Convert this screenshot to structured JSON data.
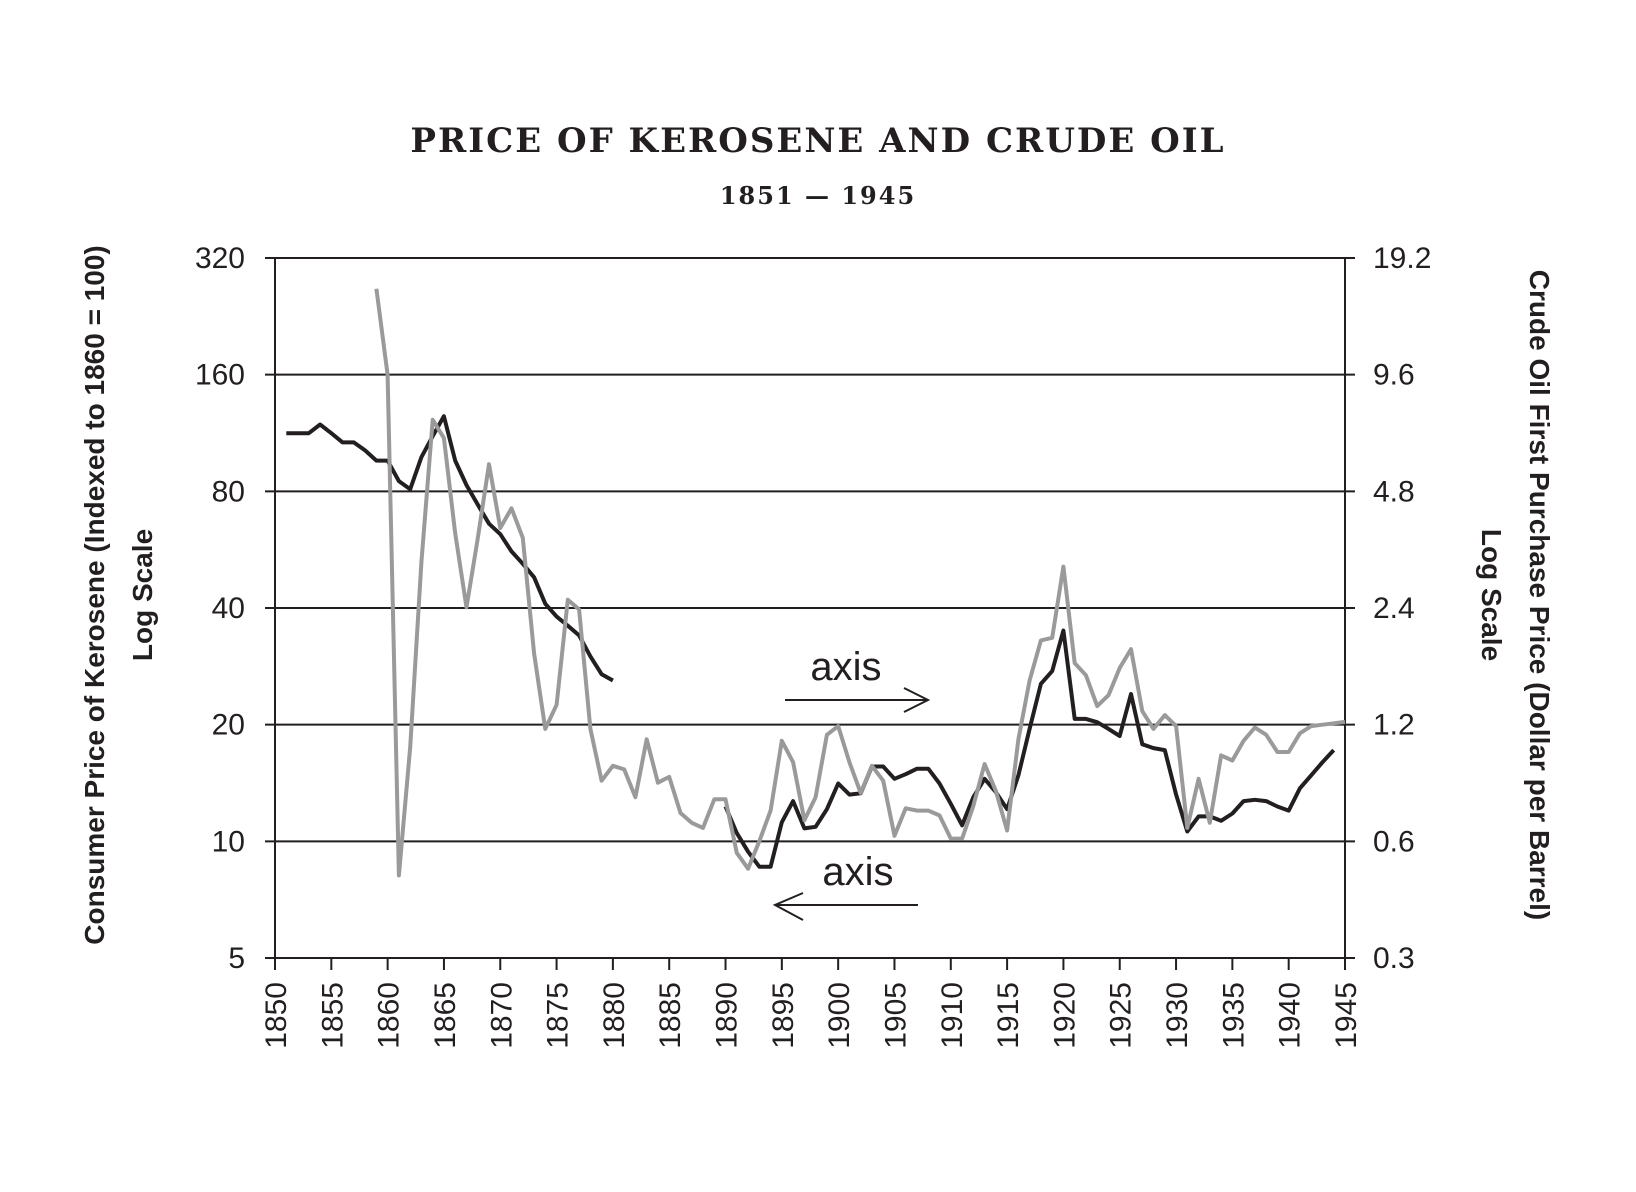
{
  "chart_data": {
    "type": "line",
    "title": "PRICE OF KEROSENE AND CRUDE OIL",
    "subtitle": "1851 — 1945",
    "xlim": [
      1850,
      1945
    ],
    "x_ticks": [
      "1850",
      "1855",
      "1860",
      "1865",
      "1870",
      "1875",
      "1880",
      "1885",
      "1890",
      "1895",
      "1900",
      "1905",
      "1910",
      "1915",
      "1920",
      "1925",
      "1930",
      "1935",
      "1940",
      "1945"
    ],
    "left_axis": {
      "label": "Consumer Price of Kerosene (Indexed to 1860 = 100)",
      "sublabel": "Log Scale",
      "scale": "log",
      "ylim": [
        5,
        320
      ],
      "ticks": [
        "320",
        "160",
        "80",
        "40",
        "20",
        "10",
        "5"
      ]
    },
    "right_axis": {
      "label": "Crude Oil First Purchase Price (Dollar per Barrel)",
      "sublabel": "Log Scale",
      "scale": "log",
      "ylim": [
        0.3,
        19.2
      ],
      "ticks": [
        "19.2",
        "9.6",
        "4.8",
        "2.4",
        "1.2",
        "0.6",
        "0.3"
      ]
    },
    "annotations": [
      {
        "text": "axis",
        "arrow": "right",
        "points_to": "crude oil (right axis)"
      },
      {
        "text": "axis",
        "arrow": "left",
        "points_to": "kerosene (left axis)"
      }
    ],
    "series": [
      {
        "name": "Kerosene",
        "axis": "left",
        "color": "#231f20",
        "segments": [
          {
            "x": [
              1851,
              1852,
              1853,
              1854,
              1855,
              1856,
              1857,
              1858,
              1859,
              1860,
              1861,
              1862,
              1863,
              1864,
              1865,
              1866,
              1867,
              1868,
              1869,
              1870,
              1871,
              1872,
              1873,
              1874,
              1875,
              1876,
              1877,
              1878,
              1879,
              1880
            ],
            "y": [
              113,
              113,
              113,
              119,
              113,
              107,
              107,
              102,
              96,
              96,
              85,
              81,
              98,
              111,
              125,
              96,
              83,
              74,
              66,
              62,
              56,
              52,
              48,
              41,
              38,
              36,
              34,
              30,
              27,
              26
            ]
          },
          {
            "x": [
              1890,
              1891,
              1892,
              1893,
              1894,
              1895,
              1896,
              1897,
              1898,
              1899,
              1900,
              1901,
              1902,
              1903,
              1904,
              1905,
              1906,
              1907,
              1908,
              1909,
              1910,
              1911,
              1912,
              1913,
              1914,
              1915,
              1916,
              1917,
              1918,
              1919,
              1920,
              1921,
              1922,
              1923,
              1924,
              1925,
              1926,
              1927,
              1928,
              1929,
              1930,
              1931,
              1932,
              1933,
              1934,
              1935,
              1936,
              1937,
              1938,
              1939,
              1940,
              1941,
              1942,
              1943,
              1944
            ],
            "y": [
              12.3,
              10.5,
              9.4,
              8.6,
              8.6,
              11.2,
              12.7,
              10.8,
              10.9,
              12.1,
              14.1,
              13.2,
              13.3,
              15.6,
              15.6,
              14.5,
              14.9,
              15.4,
              15.4,
              14.1,
              12.5,
              11.0,
              13.0,
              14.5,
              13.4,
              12.1,
              14.8,
              19.5,
              25.5,
              27.5,
              35.0,
              20.7,
              20.7,
              20.3,
              19.5,
              18.7,
              24.0,
              17.8,
              17.4,
              17.2,
              13.2,
              10.6,
              11.6,
              11.6,
              11.3,
              11.8,
              12.7,
              12.8,
              12.7,
              12.3,
              12.0,
              13.7,
              14.8,
              16.0,
              17.2
            ]
          }
        ]
      },
      {
        "name": "Crude Oil",
        "axis": "right",
        "color": "#9a9a9a",
        "segments": [
          {
            "x": [
              1859,
              1860,
              1861,
              1862,
              1863,
              1864,
              1865,
              1866,
              1867,
              1868,
              1869,
              1870,
              1871,
              1872,
              1873,
              1874,
              1875,
              1876,
              1877,
              1878,
              1879,
              1880,
              1881,
              1882,
              1883,
              1884,
              1885,
              1886,
              1887,
              1888,
              1889,
              1890,
              1891,
              1892,
              1893,
              1894,
              1895,
              1896,
              1897,
              1898,
              1899,
              1900,
              1901,
              1902,
              1903,
              1904,
              1905,
              1906,
              1907,
              1908,
              1909,
              1910,
              1911,
              1912,
              1913,
              1914,
              1915,
              1916,
              1917,
              1918,
              1919,
              1920,
              1921,
              1922,
              1923,
              1924,
              1925,
              1926,
              1927,
              1928,
              1929,
              1930,
              1931,
              1932,
              1933,
              1934,
              1935,
              1936,
              1937,
              1938,
              1939,
              1940,
              1941,
              1942,
              1943,
              1944,
              1945
            ],
            "y": [
              16,
              9.6,
              0.49,
              1.05,
              3.15,
              7.34,
              6.59,
              3.74,
              2.41,
              3.62,
              5.64,
              3.86,
              4.34,
              3.64,
              1.83,
              1.17,
              1.35,
              2.52,
              2.38,
              1.17,
              0.86,
              0.94,
              0.92,
              0.78,
              1.1,
              0.85,
              0.88,
              0.71,
              0.67,
              0.65,
              0.77,
              0.77,
              0.56,
              0.51,
              0.6,
              0.72,
              1.09,
              0.96,
              0.68,
              0.78,
              1.13,
              1.19,
              0.96,
              0.8,
              0.94,
              0.86,
              0.62,
              0.73,
              0.72,
              0.72,
              0.7,
              0.61,
              0.61,
              0.74,
              0.95,
              0.81,
              0.64,
              1.1,
              1.56,
              1.98,
              2.01,
              3.07,
              1.73,
              1.61,
              1.34,
              1.43,
              1.68,
              1.88,
              1.3,
              1.17,
              1.27,
              1.19,
              0.65,
              0.87,
              0.67,
              1.0,
              0.97,
              1.09,
              1.18,
              1.13,
              1.02,
              1.02,
              1.14,
              1.19,
              1.2,
              1.21,
              1.22
            ]
          }
        ]
      }
    ]
  }
}
